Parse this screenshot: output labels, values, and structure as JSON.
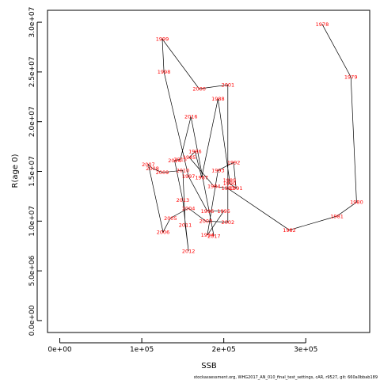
{
  "chart_data": {
    "type": "line",
    "xlabel": "SSB",
    "ylabel": "R(age 0)",
    "xlim": [
      -15000,
      378000
    ],
    "ylim": [
      -1200000,
      31200000
    ],
    "x_ticks": [
      {
        "value": 0,
        "label": "0e+00"
      },
      {
        "value": 100000,
        "label": "1e+05"
      },
      {
        "value": 200000,
        "label": "2e+05"
      },
      {
        "value": 300000,
        "label": "3e+05"
      }
    ],
    "y_ticks": [
      {
        "value": 0,
        "label": "0.0e+00"
      },
      {
        "value": 5000000,
        "label": "5.0e+06"
      },
      {
        "value": 10000000,
        "label": "1.0e+07"
      },
      {
        "value": 15000000,
        "label": "1.5e+07"
      },
      {
        "value": 20000000,
        "label": "2.0e+07"
      },
      {
        "value": 25000000,
        "label": "2.5e+07"
      },
      {
        "value": 30000000,
        "label": "3.0e+07"
      }
    ],
    "label_color": "#ff0000",
    "line_color": "#000000",
    "grid": false,
    "points": [
      {
        "year": "1978",
        "x": 320000,
        "y": 29800000
      },
      {
        "year": "1979",
        "x": 355000,
        "y": 24500000
      },
      {
        "year": "1980",
        "x": 362000,
        "y": 11900000
      },
      {
        "year": "1981",
        "x": 338000,
        "y": 10500000
      },
      {
        "year": "1982",
        "x": 280000,
        "y": 9100000
      },
      {
        "year": "1983",
        "x": 205000,
        "y": 13300000
      },
      {
        "year": "1984",
        "x": 188000,
        "y": 13500000
      },
      {
        "year": "1985",
        "x": 158000,
        "y": 16400000
      },
      {
        "year": "1986",
        "x": 165000,
        "y": 17000000
      },
      {
        "year": "1987",
        "x": 173000,
        "y": 14400000
      },
      {
        "year": "1988",
        "x": 193000,
        "y": 22300000
      },
      {
        "year": "1989",
        "x": 207000,
        "y": 14100000
      },
      {
        "year": "1990",
        "x": 207000,
        "y": 13800000
      },
      {
        "year": "1991",
        "x": 215000,
        "y": 13300000
      },
      {
        "year": "1992",
        "x": 212000,
        "y": 15900000
      },
      {
        "year": "1993",
        "x": 193000,
        "y": 15100000
      },
      {
        "year": "1994",
        "x": 180000,
        "y": 8600000
      },
      {
        "year": "1995",
        "x": 200000,
        "y": 11000000
      },
      {
        "year": "1996",
        "x": 180000,
        "y": 11000000
      },
      {
        "year": "1997",
        "x": 157000,
        "y": 14500000
      },
      {
        "year": "1998",
        "x": 127000,
        "y": 25000000
      },
      {
        "year": "1999",
        "x": 125000,
        "y": 28300000
      },
      {
        "year": "2000",
        "x": 170000,
        "y": 23300000
      },
      {
        "year": "2001",
        "x": 205000,
        "y": 23700000
      },
      {
        "year": "2002",
        "x": 205000,
        "y": 9900000
      },
      {
        "year": "2003",
        "x": 178000,
        "y": 10000000
      },
      {
        "year": "2004",
        "x": 157000,
        "y": 11300000
      },
      {
        "year": "2005",
        "x": 135000,
        "y": 10300000
      },
      {
        "year": "2006",
        "x": 126000,
        "y": 8900000
      },
      {
        "year": "2007",
        "x": 108000,
        "y": 15700000
      },
      {
        "year": "2008",
        "x": 113000,
        "y": 15300000
      },
      {
        "year": "2009",
        "x": 125000,
        "y": 14900000
      },
      {
        "year": "2010",
        "x": 150000,
        "y": 15100000
      },
      {
        "year": "2011",
        "x": 153000,
        "y": 9600000
      },
      {
        "year": "2012",
        "x": 157000,
        "y": 7000000
      },
      {
        "year": "2013",
        "x": 150000,
        "y": 12100000
      },
      {
        "year": "2014",
        "x": 140000,
        "y": 16100000
      },
      {
        "year": "2015",
        "x": 147000,
        "y": 16200000
      },
      {
        "year": "2016",
        "x": 160000,
        "y": 20500000
      },
      {
        "year": "2017",
        "x": 188000,
        "y": 8500000
      }
    ]
  },
  "footer": "stockassessment.org, WHG2017_AN_010_final_test_settings, cAR, r9527, git: 660a0bbab189"
}
